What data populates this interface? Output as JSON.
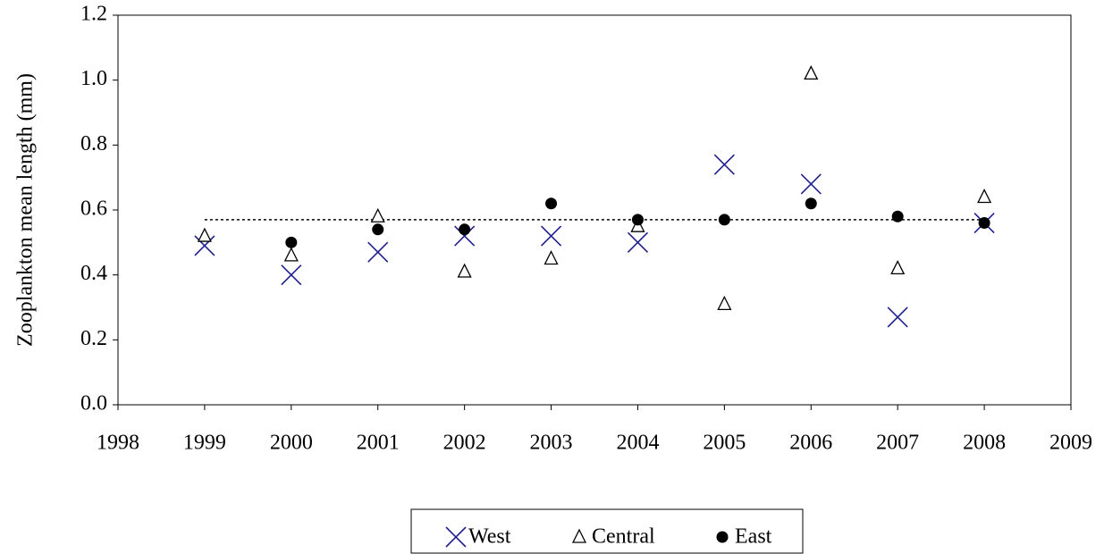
{
  "chart_data": {
    "type": "scatter",
    "y_label": "Zooplankton mean length (mm)",
    "x": [
      1999,
      2000,
      2001,
      2002,
      2003,
      2004,
      2005,
      2006,
      2007,
      2008
    ],
    "series": [
      {
        "name": "West",
        "color": "#1f1f8f",
        "marker": "x",
        "values": [
          0.49,
          0.4,
          0.47,
          0.52,
          0.52,
          0.5,
          0.74,
          0.68,
          0.27,
          0.56
        ]
      },
      {
        "name": "Central",
        "color": "#000000",
        "marker": "triangle",
        "values": [
          0.52,
          0.46,
          0.58,
          0.41,
          0.45,
          0.55,
          0.31,
          1.02,
          0.42,
          0.64
        ]
      },
      {
        "name": "East",
        "color": "#000000",
        "marker": "circle",
        "values": [
          null,
          0.5,
          0.54,
          0.54,
          0.62,
          0.57,
          0.57,
          0.62,
          0.58,
          0.56
        ]
      }
    ],
    "hline": {
      "y": 0.57,
      "x": [
        1999,
        2008
      ]
    },
    "xlim": [
      1998,
      2009
    ],
    "xticks": [
      1998,
      1999,
      2000,
      2001,
      2002,
      2003,
      2004,
      2005,
      2006,
      2007,
      2008,
      2009
    ],
    "ylim": [
      0,
      1.2
    ],
    "yticks": [
      {
        "value": 0,
        "label": "0.0"
      },
      0.2,
      0.4,
      0.6,
      0.8,
      {
        "value": 1,
        "label": "1.0"
      },
      1.2
    ],
    "legend": "bottom"
  }
}
